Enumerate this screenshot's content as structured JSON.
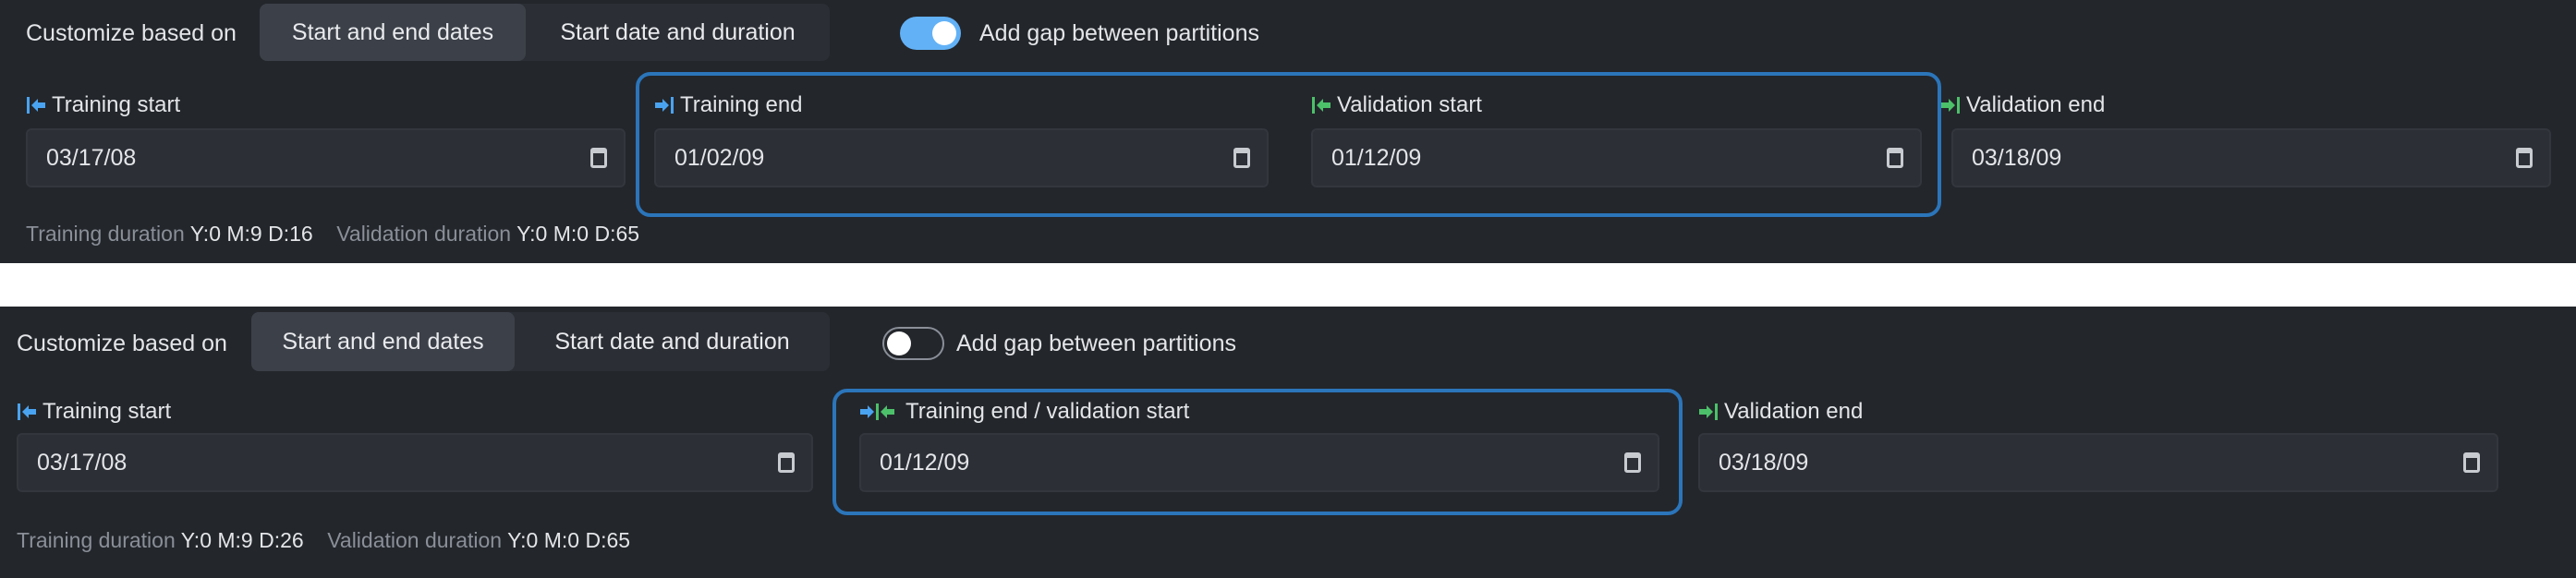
{
  "colors": {
    "accent": "#2b75ba",
    "toggle_on": "#62b1f6",
    "training_icon": "#4aa3f0",
    "validation_icon": "#4cc16a",
    "background": "#23262b"
  },
  "panels": [
    {
      "customize_label": "Customize based on",
      "tabs": [
        {
          "label": "Start and end dates",
          "active": true
        },
        {
          "label": "Start date and duration",
          "active": false
        }
      ],
      "gap_toggle": {
        "label": "Add gap between partitions",
        "on": true
      },
      "fields": [
        {
          "label": "Training start",
          "value": "03/17/08",
          "icon": "training-start-icon"
        },
        {
          "label": "Training end",
          "value": "01/02/09",
          "icon": "training-end-icon"
        },
        {
          "label": "Validation start",
          "value": "01/12/09",
          "icon": "validation-start-icon"
        },
        {
          "label": "Validation end",
          "value": "03/18/09",
          "icon": "validation-end-icon"
        }
      ],
      "training_duration_label": "Training duration",
      "training_duration": "Y:0 M:9 D:16",
      "validation_duration_label": "Validation duration",
      "validation_duration": "Y:0 M:0 D:65"
    },
    {
      "customize_label": "Customize based on",
      "tabs": [
        {
          "label": "Start and end dates",
          "active": true
        },
        {
          "label": "Start date and duration",
          "active": false
        }
      ],
      "gap_toggle": {
        "label": "Add gap between partitions",
        "on": false
      },
      "fields": [
        {
          "label": "Training start",
          "value": "03/17/08",
          "icon": "training-start-icon"
        },
        {
          "label": "Training end / validation start",
          "value": "01/12/09",
          "icon": "training-end-validation-start-icon"
        },
        {
          "label": "Validation end",
          "value": "03/18/09",
          "icon": "validation-end-icon"
        }
      ],
      "training_duration_label": "Training duration",
      "training_duration": "Y:0 M:9 D:26",
      "validation_duration_label": "Validation duration",
      "validation_duration": "Y:0 M:0 D:65"
    }
  ]
}
